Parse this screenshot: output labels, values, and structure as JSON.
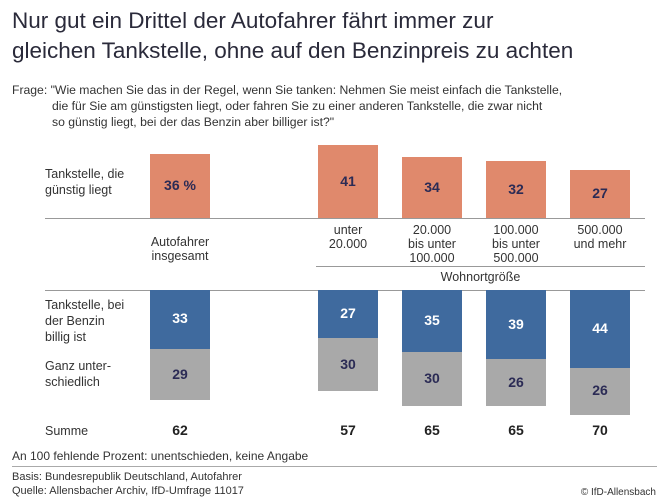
{
  "title_lines": [
    "Nur gut ein Drittel der Autofahrer fährt immer zur",
    "gleichen Tankstelle, ohne auf den Benzinpreis zu achten"
  ],
  "question_lines": [
    "Frage: \"Wie machen Sie das in der Regel, wenn Sie tanken: Nehmen Sie meist einfach die Tankstelle,",
    "die für Sie am günstigsten liegt, oder fahren Sie zu einer anderen Tankstelle, die zwar nicht",
    "so günstig liegt, bei der das Benzin aber billiger ist?\""
  ],
  "colors": {
    "orange": "#e0896c",
    "blue": "#3f6a9e",
    "gray": "#a9a9a9"
  },
  "chart_data": {
    "type": "bar",
    "categories": [
      "Autofahrer insgesamt",
      "unter 20.000",
      "20.000 bis unter 100.000",
      "100.000 bis unter 500.000",
      "500.000 und mehr"
    ],
    "category_lines": [
      [
        "Autofahrer",
        "insgesamt"
      ],
      [
        "unter",
        "20.000"
      ],
      [
        "20.000",
        "bis unter",
        "100.000"
      ],
      [
        "100.000",
        "bis unter",
        "500.000"
      ],
      [
        "500.000",
        "und mehr"
      ]
    ],
    "group_label": "Wohnortgröße",
    "unit": "%",
    "series": [
      {
        "name": "Tankstelle, die günstig liegt",
        "label_lines": [
          "Tankstelle, die",
          "günstig liegt"
        ],
        "values": [
          36,
          41,
          34,
          32,
          27
        ],
        "labels": [
          "36 %",
          "41",
          "34",
          "32",
          "27"
        ],
        "color": "#e0896c"
      },
      {
        "name": "Tankstelle, bei der Benzin billig ist",
        "label_lines": [
          "Tankstelle, bei",
          "der Benzin",
          "billig ist"
        ],
        "values": [
          33,
          27,
          35,
          39,
          44
        ],
        "color": "#3f6a9e"
      },
      {
        "name": "Ganz unterschiedlich",
        "label_lines": [
          "Ganz unter-",
          "schiedlich"
        ],
        "values": [
          29,
          30,
          30,
          26,
          26
        ],
        "color": "#a9a9a9"
      }
    ],
    "sum_label": "Summe",
    "sums": [
      62,
      57,
      65,
      65,
      70
    ]
  },
  "footnote": "An 100 fehlende Prozent: unentschieden, keine Angabe",
  "basis": "Basis: Bundesrepublik Deutschland, Autofahrer",
  "source": "Quelle: Allensbacher Archiv, IfD-Umfrage 11017",
  "copyright": "© IfD-Allensbach"
}
